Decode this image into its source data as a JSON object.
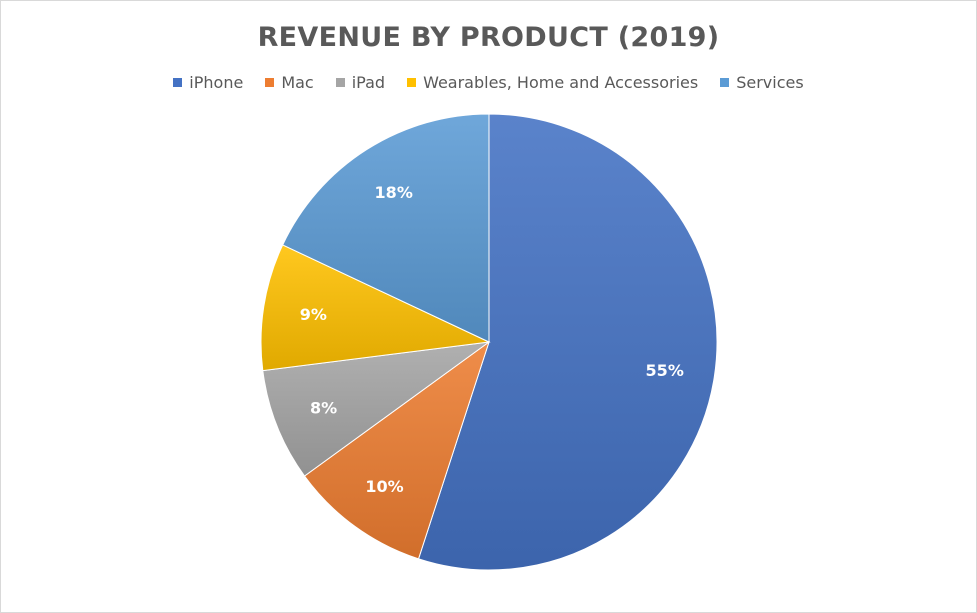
{
  "chart_data": {
    "type": "pie",
    "title": "REVENUE BY PRODUCT (2019)",
    "legend_position": "top",
    "slices": [
      {
        "name": "iPhone",
        "value": 55,
        "label": "55%",
        "color": "#4472c4"
      },
      {
        "name": "Mac",
        "value": 10,
        "label": "10%",
        "color": "#ed7d31"
      },
      {
        "name": "iPad",
        "value": 8,
        "label": "8%",
        "color": "#a5a5a5"
      },
      {
        "name": "Wearables, Home and Accessories",
        "value": 9,
        "label": "9%",
        "color": "#ffc000"
      },
      {
        "name": "Services",
        "value": 18,
        "label": "18%",
        "color": "#5b9bd5"
      }
    ]
  }
}
